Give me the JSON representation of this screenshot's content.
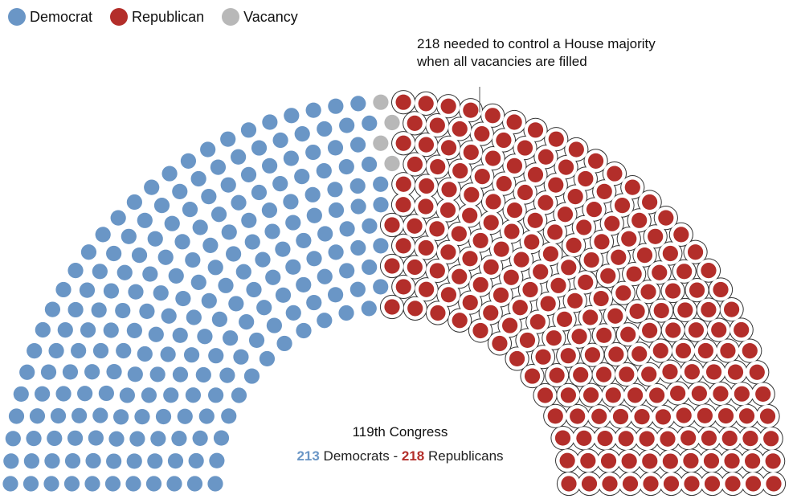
{
  "legend": {
    "items": [
      {
        "label": "Democrat",
        "color": "#6a96c6"
      },
      {
        "label": "Republican",
        "color": "#b32e2a"
      },
      {
        "label": "Vacancy",
        "color": "#b8b8b8"
      }
    ]
  },
  "annotation": {
    "line1": "218 needed to control a House majority",
    "line2": "when all vacancies are filled"
  },
  "summary": {
    "title": "119th Congress",
    "dem_count": "213",
    "dem_label": "Democrats",
    "separator": "-",
    "rep_count": "218",
    "rep_label": "Republicans"
  },
  "chart_data": {
    "type": "parliament",
    "title": "119th Congress",
    "total_seats": 435,
    "majority_threshold": 218,
    "series": [
      {
        "name": "Democrat",
        "value": 213,
        "color": "#6a96c6"
      },
      {
        "name": "Vacancy",
        "value": 4,
        "color": "#b8b8b8"
      },
      {
        "name": "Republican",
        "value": 218,
        "color": "#b32e2a"
      }
    ]
  }
}
